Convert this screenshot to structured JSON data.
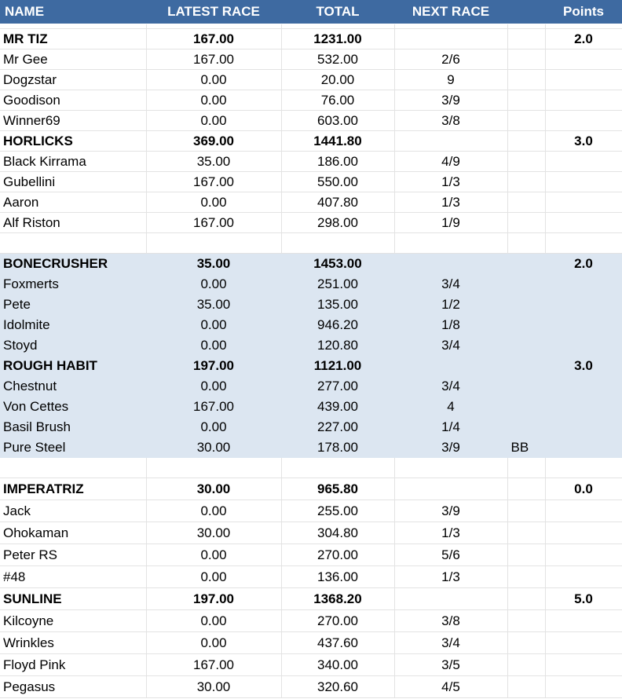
{
  "headers": [
    "NAME",
    "LATEST RACE",
    "TOTAL",
    "NEXT RACE",
    "",
    "Points"
  ],
  "rows": [
    {
      "cells": [
        "MR TIZ",
        "167.00",
        "1231.00",
        "",
        "",
        "2.0"
      ],
      "bold": true
    },
    {
      "cells": [
        "Mr Gee",
        "167.00",
        "532.00",
        "2/6",
        "",
        ""
      ]
    },
    {
      "cells": [
        "Dogzstar",
        "0.00",
        "20.00",
        "9",
        "",
        ""
      ]
    },
    {
      "cells": [
        "Goodison",
        "0.00",
        "76.00",
        "3/9",
        "",
        ""
      ]
    },
    {
      "cells": [
        "Winner69",
        "0.00",
        "603.00",
        "3/8",
        "",
        ""
      ]
    },
    {
      "cells": [
        "HORLICKS",
        "369.00",
        "1441.80",
        "",
        "",
        "3.0"
      ],
      "bold": true
    },
    {
      "cells": [
        "Black Kirrama",
        "35.00",
        "186.00",
        "4/9",
        "",
        ""
      ]
    },
    {
      "cells": [
        "Gubellini",
        "167.00",
        "550.00",
        "1/3",
        "",
        ""
      ]
    },
    {
      "cells": [
        "Aaron",
        "0.00",
        "407.80",
        "1/3",
        "",
        ""
      ]
    },
    {
      "cells": [
        "Alf Riston",
        "167.00",
        "298.00",
        "1/9",
        "",
        ""
      ]
    },
    {
      "cells": [
        "",
        "",
        "",
        "",
        "",
        ""
      ],
      "spacer": true
    },
    {
      "cells": [
        "BONECRUSHER",
        "35.00",
        "1453.00",
        "",
        "",
        "2.0"
      ],
      "bold": true,
      "blue": true
    },
    {
      "cells": [
        "Foxmerts",
        "0.00",
        "251.00",
        "3/4",
        "",
        ""
      ],
      "blue": true
    },
    {
      "cells": [
        "Pete",
        "35.00",
        "135.00",
        "1/2",
        "",
        ""
      ],
      "blue": true
    },
    {
      "cells": [
        "Idolmite",
        "0.00",
        "946.20",
        "1/8",
        "",
        ""
      ],
      "blue": true
    },
    {
      "cells": [
        "Stoyd",
        "0.00",
        "120.80",
        "3/4",
        "",
        ""
      ],
      "blue": true
    },
    {
      "cells": [
        "ROUGH HABIT",
        "197.00",
        "1121.00",
        "",
        "",
        "3.0"
      ],
      "bold": true,
      "blue": true
    },
    {
      "cells": [
        "Chestnut",
        "0.00",
        "277.00",
        "3/4",
        "",
        ""
      ],
      "blue": true
    },
    {
      "cells": [
        "Von Cettes",
        "167.00",
        "439.00",
        "4",
        "",
        ""
      ],
      "blue": true
    },
    {
      "cells": [
        "Basil Brush",
        "0.00",
        "227.00",
        "1/4",
        "",
        ""
      ],
      "blue": true
    },
    {
      "cells": [
        "Pure Steel",
        "30.00",
        "178.00",
        "3/9",
        "BB",
        ""
      ],
      "blue": true
    },
    {
      "cells": [
        "",
        "",
        "",
        "",
        "",
        ""
      ],
      "spacer": true
    },
    {
      "cells": [
        "IMPERATRIZ",
        "30.00",
        "965.80",
        "",
        "",
        "0.0"
      ],
      "bold": true,
      "tall": true
    },
    {
      "cells": [
        "Jack",
        "0.00",
        "255.00",
        "3/9",
        "",
        ""
      ],
      "tall": true
    },
    {
      "cells": [
        "Ohokaman",
        "30.00",
        "304.80",
        "1/3",
        "",
        ""
      ],
      "tall": true
    },
    {
      "cells": [
        "Peter RS",
        "0.00",
        "270.00",
        "5/6",
        "",
        ""
      ],
      "tall": true
    },
    {
      "cells": [
        "#48",
        "0.00",
        "136.00",
        "1/3",
        "",
        ""
      ],
      "tall": true
    },
    {
      "cells": [
        "SUNLINE",
        "197.00",
        "1368.20",
        "",
        "",
        "5.0"
      ],
      "bold": true,
      "tall": true
    },
    {
      "cells": [
        "Kilcoyne",
        "0.00",
        "270.00",
        "3/8",
        "",
        ""
      ],
      "tall": true
    },
    {
      "cells": [
        "Wrinkles",
        "0.00",
        "437.60",
        "3/4",
        "",
        ""
      ],
      "tall": true
    },
    {
      "cells": [
        "Floyd Pink",
        "167.00",
        "340.00",
        "3/5",
        "",
        ""
      ],
      "tall": true
    },
    {
      "cells": [
        "Pegasus",
        "30.00",
        "320.60",
        "4/5",
        "",
        ""
      ],
      "tall": true
    }
  ]
}
